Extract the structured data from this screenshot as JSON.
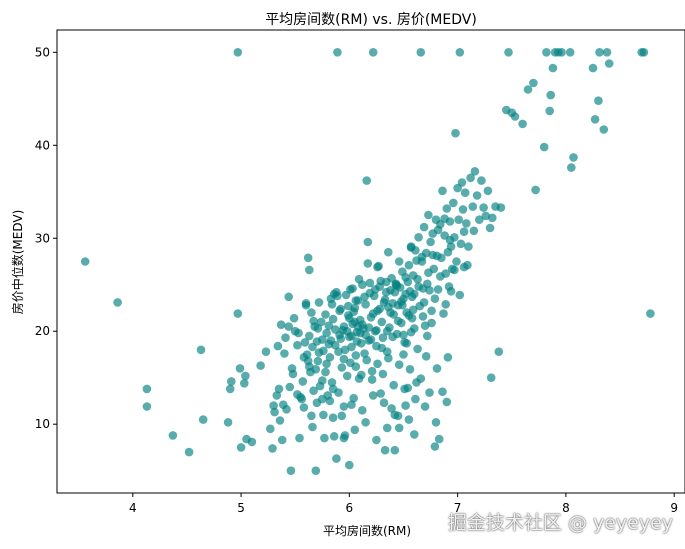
{
  "chart_data": {
    "type": "scatter",
    "title": "平均房间数(RM) vs. 房价(MEDV)",
    "xlabel": "平均房间数(RM)",
    "ylabel": "房价中位数(MEDV)",
    "xlim": [
      3.3,
      9.1
    ],
    "ylim": [
      2.6,
      52.4
    ],
    "xticks": [
      4,
      5,
      6,
      7,
      8,
      9
    ],
    "yticks": [
      10,
      20,
      30,
      40,
      50
    ],
    "grid": false,
    "legend": "none",
    "marker_color": "#008080",
    "marker_alpha": 0.65,
    "points": [
      [
        3.56,
        27.5
      ],
      [
        3.86,
        23.1
      ],
      [
        4.13,
        13.8
      ],
      [
        4.13,
        11.9
      ],
      [
        4.37,
        8.8
      ],
      [
        4.52,
        7.0
      ],
      [
        4.63,
        18.0
      ],
      [
        4.65,
        10.5
      ],
      [
        4.88,
        10.2
      ],
      [
        4.9,
        13.8
      ],
      [
        4.91,
        14.6
      ],
      [
        4.97,
        21.9
      ],
      [
        4.97,
        50.0
      ],
      [
        4.99,
        16.0
      ],
      [
        5.0,
        7.5
      ],
      [
        5.03,
        14.4
      ],
      [
        5.04,
        15.2
      ],
      [
        5.05,
        8.4
      ],
      [
        5.1,
        8.1
      ],
      [
        5.18,
        16.3
      ],
      [
        5.23,
        17.8
      ],
      [
        5.29,
        7.4
      ],
      [
        5.31,
        11.3
      ],
      [
        5.33,
        13.1
      ],
      [
        5.36,
        10.4
      ],
      [
        5.38,
        8.3
      ],
      [
        5.39,
        12.1
      ],
      [
        5.41,
        19.3
      ],
      [
        5.44,
        23.7
      ],
      [
        5.45,
        14.0
      ],
      [
        5.46,
        5.0
      ],
      [
        5.47,
        16.0
      ],
      [
        5.5,
        20.0
      ],
      [
        5.52,
        13.2
      ],
      [
        5.54,
        8.5
      ],
      [
        5.56,
        12.7
      ],
      [
        5.57,
        14.6
      ],
      [
        5.58,
        11.8
      ],
      [
        5.6,
        23.0
      ],
      [
        5.6,
        22.8
      ],
      [
        5.61,
        17.5
      ],
      [
        5.62,
        27.9
      ],
      [
        5.63,
        26.6
      ],
      [
        5.63,
        19.5
      ],
      [
        5.64,
        15.6
      ],
      [
        5.65,
        22.0
      ],
      [
        5.66,
        9.7
      ],
      [
        5.67,
        13.6
      ],
      [
        5.68,
        20.5
      ],
      [
        5.69,
        5.0
      ],
      [
        5.7,
        18.9
      ],
      [
        5.7,
        12.3
      ],
      [
        5.71,
        16.8
      ],
      [
        5.72,
        23.1
      ],
      [
        5.73,
        14.1
      ],
      [
        5.74,
        21.0
      ],
      [
        5.75,
        19.1
      ],
      [
        5.76,
        11.0
      ],
      [
        5.77,
        8.5
      ],
      [
        5.78,
        15.6
      ],
      [
        5.79,
        19.8
      ],
      [
        5.8,
        13.1
      ],
      [
        5.81,
        20.6
      ],
      [
        5.82,
        17.2
      ],
      [
        5.83,
        23.5
      ],
      [
        5.84,
        14.5
      ],
      [
        5.85,
        21.3
      ],
      [
        5.86,
        8.7
      ],
      [
        5.87,
        18.5
      ],
      [
        5.88,
        24.2
      ],
      [
        5.88,
        6.3
      ],
      [
        5.89,
        50.0
      ],
      [
        5.9,
        13.4
      ],
      [
        5.91,
        19.6
      ],
      [
        5.92,
        22.4
      ],
      [
        5.93,
        10.9
      ],
      [
        5.94,
        20.1
      ],
      [
        5.95,
        17.0
      ],
      [
        5.96,
        8.8
      ],
      [
        5.97,
        23.9
      ],
      [
        5.98,
        15.2
      ],
      [
        5.99,
        21.7
      ],
      [
        6.0,
        19.4
      ],
      [
        6.0,
        5.6
      ],
      [
        6.01,
        24.5
      ],
      [
        6.02,
        18.3
      ],
      [
        6.03,
        20.8
      ],
      [
        6.04,
        12.8
      ],
      [
        6.05,
        22.5
      ],
      [
        6.06,
        16.2
      ],
      [
        6.07,
        19.9
      ],
      [
        6.08,
        23.3
      ],
      [
        6.09,
        14.9
      ],
      [
        6.1,
        21.2
      ],
      [
        6.11,
        18.7
      ],
      [
        6.12,
        25.0
      ],
      [
        6.13,
        20.3
      ],
      [
        6.14,
        17.6
      ],
      [
        6.15,
        22.9
      ],
      [
        6.16,
        36.2
      ],
      [
        6.17,
        29.6
      ],
      [
        6.18,
        19.0
      ],
      [
        6.19,
        24.1
      ],
      [
        6.2,
        21.5
      ],
      [
        6.21,
        15.7
      ],
      [
        6.22,
        50.0
      ],
      [
        6.23,
        23.8
      ],
      [
        6.24,
        20.0
      ],
      [
        6.25,
        18.4
      ],
      [
        6.26,
        22.2
      ],
      [
        6.27,
        27.0
      ],
      [
        6.28,
        24.8
      ],
      [
        6.29,
        13.3
      ],
      [
        6.3,
        21.0
      ],
      [
        6.31,
        19.3
      ],
      [
        6.32,
        23.1
      ],
      [
        6.33,
        7.2
      ],
      [
        6.34,
        25.3
      ],
      [
        6.35,
        17.8
      ],
      [
        6.36,
        22.6
      ],
      [
        6.37,
        20.4
      ],
      [
        6.38,
        24.4
      ],
      [
        6.39,
        11.7
      ],
      [
        6.4,
        23.0
      ],
      [
        6.41,
        21.8
      ],
      [
        6.42,
        7.2
      ],
      [
        6.43,
        25.0
      ],
      [
        6.44,
        19.7
      ],
      [
        6.45,
        22.8
      ],
      [
        6.46,
        9.6
      ],
      [
        6.47,
        24.7
      ],
      [
        6.48,
        20.9
      ],
      [
        6.49,
        26.4
      ],
      [
        6.5,
        23.5
      ],
      [
        6.51,
        18.8
      ],
      [
        6.52,
        25.8
      ],
      [
        6.53,
        22.0
      ],
      [
        6.54,
        13.9
      ],
      [
        6.55,
        27.1
      ],
      [
        6.56,
        24.3
      ],
      [
        6.57,
        29.0
      ],
      [
        6.58,
        21.4
      ],
      [
        6.59,
        26.0
      ],
      [
        6.6,
        24.0
      ],
      [
        6.61,
        28.7
      ],
      [
        6.62,
        14.5
      ],
      [
        6.63,
        25.6
      ],
      [
        6.64,
        30.1
      ],
      [
        6.65,
        22.7
      ],
      [
        6.66,
        50.0
      ],
      [
        6.67,
        27.5
      ],
      [
        6.68,
        24.6
      ],
      [
        6.69,
        31.2
      ],
      [
        6.7,
        20.6
      ],
      [
        6.71,
        28.4
      ],
      [
        6.72,
        25.1
      ],
      [
        6.73,
        32.5
      ],
      [
        6.74,
        13.4
      ],
      [
        6.75,
        29.6
      ],
      [
        6.76,
        22.2
      ],
      [
        6.77,
        30.5
      ],
      [
        6.78,
        26.7
      ],
      [
        6.79,
        7.6
      ],
      [
        6.8,
        32.0
      ],
      [
        6.81,
        28.1
      ],
      [
        6.82,
        24.5
      ],
      [
        6.83,
        8.4
      ],
      [
        6.84,
        31.5
      ],
      [
        6.85,
        27.9
      ],
      [
        6.86,
        35.1
      ],
      [
        6.87,
        21.9
      ],
      [
        6.88,
        30.3
      ],
      [
        6.89,
        26.2
      ],
      [
        6.9,
        33.2
      ],
      [
        6.91,
        28.5
      ],
      [
        6.92,
        24.8
      ],
      [
        6.93,
        31.8
      ],
      [
        6.94,
        29.1
      ],
      [
        6.95,
        26.7
      ],
      [
        6.96,
        33.8
      ],
      [
        6.97,
        30.1
      ],
      [
        6.98,
        41.3
      ],
      [
        6.99,
        27.5
      ],
      [
        7.0,
        35.4
      ],
      [
        7.01,
        32.0
      ],
      [
        7.02,
        50.0
      ],
      [
        7.03,
        29.4
      ],
      [
        7.04,
        36.0
      ],
      [
        7.05,
        33.1
      ],
      [
        7.06,
        30.7
      ],
      [
        7.07,
        34.9
      ],
      [
        7.08,
        31.6
      ],
      [
        7.1,
        29.1
      ],
      [
        7.12,
        36.5
      ],
      [
        7.14,
        33.4
      ],
      [
        7.15,
        30.8
      ],
      [
        7.16,
        37.2
      ],
      [
        7.18,
        34.6
      ],
      [
        7.2,
        32.0
      ],
      [
        7.22,
        36.2
      ],
      [
        7.24,
        33.3
      ],
      [
        7.26,
        32.4
      ],
      [
        7.28,
        35.1
      ],
      [
        7.3,
        31.1
      ],
      [
        7.32,
        32.2
      ],
      [
        7.35,
        33.4
      ],
      [
        7.38,
        17.8
      ],
      [
        7.4,
        33.3
      ],
      [
        7.45,
        43.8
      ],
      [
        7.47,
        50.0
      ],
      [
        7.5,
        43.5
      ],
      [
        7.53,
        43.1
      ],
      [
        7.6,
        42.3
      ],
      [
        7.65,
        46.0
      ],
      [
        7.7,
        46.7
      ],
      [
        7.72,
        35.2
      ],
      [
        7.8,
        39.8
      ],
      [
        7.82,
        50.0
      ],
      [
        7.85,
        43.7
      ],
      [
        7.86,
        45.4
      ],
      [
        7.88,
        48.3
      ],
      [
        7.9,
        50.0
      ],
      [
        7.93,
        50.0
      ],
      [
        7.96,
        50.0
      ],
      [
        8.04,
        50.0
      ],
      [
        8.05,
        37.6
      ],
      [
        8.07,
        38.7
      ],
      [
        8.25,
        48.3
      ],
      [
        8.27,
        42.8
      ],
      [
        8.3,
        44.8
      ],
      [
        8.31,
        50.0
      ],
      [
        8.35,
        41.7
      ],
      [
        8.38,
        50.0
      ],
      [
        8.4,
        48.8
      ],
      [
        8.7,
        50.0
      ],
      [
        8.72,
        50.0
      ],
      [
        8.78,
        21.9
      ],
      [
        7.31,
        15.0
      ],
      [
        5.98,
        20.0
      ],
      [
        6.02,
        19.5
      ],
      [
        6.05,
        21.0
      ],
      [
        6.08,
        20.5
      ],
      [
        6.1,
        19.8
      ],
      [
        6.12,
        20.7
      ],
      [
        5.95,
        20.5
      ],
      [
        6.15,
        19.6
      ],
      [
        6.0,
        21.4
      ],
      [
        6.04,
        22.1
      ],
      [
        5.92,
        19.2
      ],
      [
        6.07,
        18.9
      ],
      [
        6.18,
        20.4
      ],
      [
        6.2,
        19.1
      ],
      [
        6.22,
        21.9
      ],
      [
        6.25,
        20.1
      ],
      [
        6.28,
        22.4
      ],
      [
        6.3,
        18.2
      ],
      [
        6.33,
        23.4
      ],
      [
        6.35,
        20.0
      ],
      [
        6.38,
        22.0
      ],
      [
        6.4,
        19.4
      ],
      [
        6.42,
        24.2
      ],
      [
        6.45,
        21.1
      ],
      [
        6.48,
        23.2
      ],
      [
        6.5,
        19.6
      ],
      [
        6.52,
        24.0
      ],
      [
        6.55,
        21.7
      ],
      [
        6.58,
        23.7
      ],
      [
        6.6,
        20.3
      ],
      [
        5.9,
        17.8
      ],
      [
        5.93,
        16.1
      ],
      [
        5.96,
        18.0
      ],
      [
        6.01,
        16.6
      ],
      [
        6.06,
        17.4
      ],
      [
        6.11,
        15.3
      ],
      [
        6.16,
        16.9
      ],
      [
        6.21,
        14.8
      ],
      [
        6.26,
        16.5
      ],
      [
        6.31,
        15.4
      ],
      [
        6.36,
        17.1
      ],
      [
        6.41,
        14.2
      ],
      [
        6.46,
        16.4
      ],
      [
        6.51,
        13.8
      ],
      [
        6.56,
        15.9
      ],
      [
        6.61,
        12.7
      ],
      [
        6.66,
        14.9
      ],
      [
        6.71,
        17.3
      ],
      [
        5.78,
        21.8
      ],
      [
        5.81,
        18.6
      ],
      [
        5.84,
        22.9
      ],
      [
        5.87,
        20.2
      ],
      [
        5.89,
        23.8
      ],
      [
        6.03,
        24.6
      ],
      [
        6.09,
        25.6
      ],
      [
        6.14,
        23.7
      ],
      [
        6.19,
        25.2
      ],
      [
        6.24,
        24.5
      ],
      [
        6.29,
        25.4
      ],
      [
        6.34,
        24.2
      ],
      [
        6.39,
        25.7
      ],
      [
        6.44,
        24.9
      ],
      [
        6.49,
        22.8
      ],
      [
        6.54,
        25.3
      ],
      [
        6.59,
        22.3
      ],
      [
        6.64,
        24.8
      ],
      [
        6.69,
        23.1
      ],
      [
        6.74,
        24.4
      ],
      [
        6.79,
        23.5
      ],
      [
        6.84,
        25.9
      ],
      [
        6.89,
        22.9
      ],
      [
        6.94,
        24.3
      ],
      [
        5.58,
        17.2
      ],
      [
        5.62,
        16.8
      ],
      [
        5.66,
        18.3
      ],
      [
        5.69,
        15.9
      ],
      [
        5.72,
        17.7
      ],
      [
        5.75,
        14.7
      ],
      [
        5.79,
        16.5
      ],
      [
        5.82,
        12.5
      ],
      [
        5.85,
        13.8
      ],
      [
        5.95,
        11.9
      ],
      [
        6.02,
        12.1
      ],
      [
        6.12,
        11.5
      ],
      [
        6.22,
        13.1
      ],
      [
        6.32,
        12.3
      ],
      [
        6.42,
        11.0
      ],
      [
        6.52,
        12.0
      ],
      [
        5.48,
        15.4
      ],
      [
        5.52,
        18.5
      ],
      [
        5.55,
        12.9
      ],
      [
        5.42,
        11.6
      ],
      [
        5.35,
        13.8
      ],
      [
        5.3,
        12.0
      ],
      [
        5.27,
        9.5
      ],
      [
        6.5,
        17.5
      ],
      [
        6.53,
        18.7
      ],
      [
        6.57,
        19.9
      ],
      [
        6.63,
        18.1
      ],
      [
        6.68,
        21.6
      ],
      [
        6.72,
        19.5
      ],
      [
        6.76,
        20.9
      ],
      [
        6.81,
        16.0
      ],
      [
        6.86,
        13.5
      ],
      [
        6.91,
        17.2
      ],
      [
        6.97,
        26.6
      ],
      [
        7.02,
        23.9
      ],
      [
        7.06,
        26.9
      ],
      [
        7.09,
        27.1
      ],
      [
        6.93,
        29.8
      ],
      [
        6.88,
        32.1
      ],
      [
        6.82,
        30.9
      ],
      [
        6.77,
        28.2
      ],
      [
        6.73,
        26.3
      ],
      [
        6.67,
        28.0
      ],
      [
        6.62,
        27.6
      ],
      [
        6.57,
        29.1
      ],
      [
        6.46,
        27.5
      ],
      [
        6.43,
        25.1
      ],
      [
        6.36,
        28.5
      ],
      [
        6.26,
        26.9
      ],
      [
        6.17,
        27.3
      ],
      [
        6.06,
        23.3
      ],
      [
        5.99,
        22.7
      ],
      [
        5.91,
        22.2
      ],
      [
        5.86,
        24.0
      ],
      [
        5.83,
        19.0
      ],
      [
        5.76,
        17.9
      ],
      [
        5.71,
        20.3
      ],
      [
        5.67,
        21.1
      ],
      [
        5.63,
        16.2
      ],
      [
        5.59,
        18.8
      ],
      [
        5.53,
        19.8
      ],
      [
        5.49,
        21.4
      ],
      [
        5.44,
        20.5
      ],
      [
        5.4,
        17.6
      ],
      [
        5.37,
        20.7
      ],
      [
        5.34,
        18.4
      ],
      [
        6.8,
        10.2
      ],
      [
        6.7,
        11.9
      ],
      [
        6.6,
        8.9
      ],
      [
        6.45,
        10.9
      ],
      [
        6.25,
        8.3
      ],
      [
        6.15,
        10.2
      ],
      [
        6.05,
        9.4
      ],
      [
        5.95,
        8.5
      ],
      [
        5.85,
        10.7
      ],
      [
        5.75,
        12.7
      ],
      [
        5.65,
        10.9
      ],
      [
        6.35,
        9.6
      ],
      [
        6.55,
        10.5
      ],
      [
        6.9,
        12.4
      ]
    ]
  },
  "watermark": "掘金技术社区 @ yeyeyey"
}
